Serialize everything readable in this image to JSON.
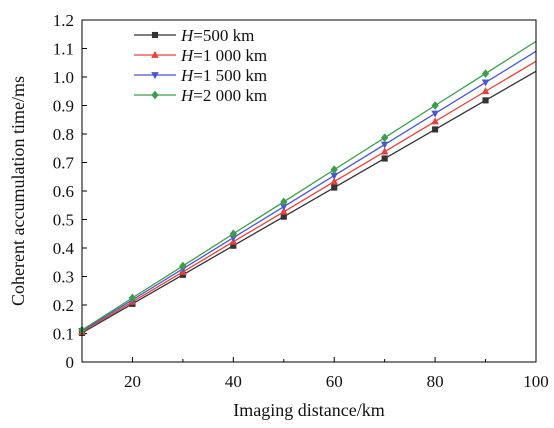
{
  "chart_data": {
    "type": "line",
    "title": "",
    "xlabel": "Imaging distance/km",
    "ylabel": "Coherent accumulation time/ms",
    "xlim": [
      10,
      100
    ],
    "ylim": [
      0,
      1.2
    ],
    "xticks": [
      "20",
      "40",
      "60",
      "80",
      "100"
    ],
    "yticks": [
      "0",
      "0.1",
      "0.2",
      "0.3",
      "0.4",
      "0.5",
      "0.6",
      "0.7",
      "0.8",
      "0.9",
      "1.0",
      "1.1",
      "1.2"
    ],
    "grid": false,
    "legend_position": "top-left",
    "x": [
      10,
      20,
      30,
      40,
      50,
      60,
      70,
      80,
      90
    ],
    "series": [
      {
        "var": "H",
        "name": "=500 km",
        "color": "#333333",
        "marker": "square",
        "values": [
          0.102,
          0.204,
          0.306,
          0.408,
          0.51,
          0.612,
          0.714,
          0.816,
          0.918
        ],
        "end_value": 1.02
      },
      {
        "var": "H",
        "name": "=1 000 km",
        "color": "#e8413c",
        "marker": "triangle-up",
        "values": [
          0.105,
          0.211,
          0.316,
          0.422,
          0.527,
          0.633,
          0.738,
          0.844,
          0.95
        ],
        "end_value": 1.055
      },
      {
        "var": "H",
        "name": "=1 500 km",
        "color": "#4a57d4",
        "marker": "triangle-down",
        "values": [
          0.109,
          0.218,
          0.327,
          0.436,
          0.545,
          0.654,
          0.763,
          0.872,
          0.981
        ],
        "end_value": 1.09
      },
      {
        "var": "H",
        "name": "=2 000 km",
        "color": "#3a9e4a",
        "marker": "diamond",
        "values": [
          0.112,
          0.225,
          0.337,
          0.45,
          0.562,
          0.675,
          0.787,
          0.9,
          1.012
        ],
        "end_value": 1.125
      }
    ]
  }
}
